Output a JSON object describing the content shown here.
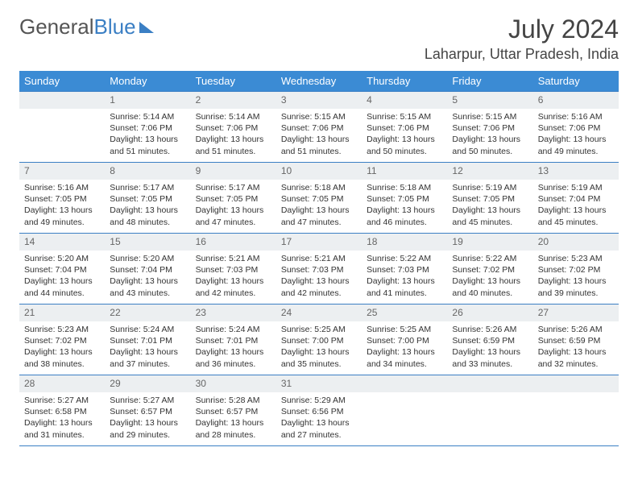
{
  "brand": {
    "part1": "General",
    "part2": "Blue"
  },
  "title": {
    "month": "July 2024",
    "location": "Laharpur, Uttar Pradesh, India"
  },
  "colors": {
    "header_bg": "#3b8bd4",
    "rule": "#3b7fc4",
    "daynum_bg": "#eceff1"
  },
  "weekdays": [
    "Sunday",
    "Monday",
    "Tuesday",
    "Wednesday",
    "Thursday",
    "Friday",
    "Saturday"
  ],
  "weeks": [
    [
      null,
      {
        "n": "1",
        "sr": "5:14 AM",
        "ss": "7:06 PM",
        "dl": "13 hours and 51 minutes."
      },
      {
        "n": "2",
        "sr": "5:14 AM",
        "ss": "7:06 PM",
        "dl": "13 hours and 51 minutes."
      },
      {
        "n": "3",
        "sr": "5:15 AM",
        "ss": "7:06 PM",
        "dl": "13 hours and 51 minutes."
      },
      {
        "n": "4",
        "sr": "5:15 AM",
        "ss": "7:06 PM",
        "dl": "13 hours and 50 minutes."
      },
      {
        "n": "5",
        "sr": "5:15 AM",
        "ss": "7:06 PM",
        "dl": "13 hours and 50 minutes."
      },
      {
        "n": "6",
        "sr": "5:16 AM",
        "ss": "7:06 PM",
        "dl": "13 hours and 49 minutes."
      }
    ],
    [
      {
        "n": "7",
        "sr": "5:16 AM",
        "ss": "7:05 PM",
        "dl": "13 hours and 49 minutes."
      },
      {
        "n": "8",
        "sr": "5:17 AM",
        "ss": "7:05 PM",
        "dl": "13 hours and 48 minutes."
      },
      {
        "n": "9",
        "sr": "5:17 AM",
        "ss": "7:05 PM",
        "dl": "13 hours and 47 minutes."
      },
      {
        "n": "10",
        "sr": "5:18 AM",
        "ss": "7:05 PM",
        "dl": "13 hours and 47 minutes."
      },
      {
        "n": "11",
        "sr": "5:18 AM",
        "ss": "7:05 PM",
        "dl": "13 hours and 46 minutes."
      },
      {
        "n": "12",
        "sr": "5:19 AM",
        "ss": "7:05 PM",
        "dl": "13 hours and 45 minutes."
      },
      {
        "n": "13",
        "sr": "5:19 AM",
        "ss": "7:04 PM",
        "dl": "13 hours and 45 minutes."
      }
    ],
    [
      {
        "n": "14",
        "sr": "5:20 AM",
        "ss": "7:04 PM",
        "dl": "13 hours and 44 minutes."
      },
      {
        "n": "15",
        "sr": "5:20 AM",
        "ss": "7:04 PM",
        "dl": "13 hours and 43 minutes."
      },
      {
        "n": "16",
        "sr": "5:21 AM",
        "ss": "7:03 PM",
        "dl": "13 hours and 42 minutes."
      },
      {
        "n": "17",
        "sr": "5:21 AM",
        "ss": "7:03 PM",
        "dl": "13 hours and 42 minutes."
      },
      {
        "n": "18",
        "sr": "5:22 AM",
        "ss": "7:03 PM",
        "dl": "13 hours and 41 minutes."
      },
      {
        "n": "19",
        "sr": "5:22 AM",
        "ss": "7:02 PM",
        "dl": "13 hours and 40 minutes."
      },
      {
        "n": "20",
        "sr": "5:23 AM",
        "ss": "7:02 PM",
        "dl": "13 hours and 39 minutes."
      }
    ],
    [
      {
        "n": "21",
        "sr": "5:23 AM",
        "ss": "7:02 PM",
        "dl": "13 hours and 38 minutes."
      },
      {
        "n": "22",
        "sr": "5:24 AM",
        "ss": "7:01 PM",
        "dl": "13 hours and 37 minutes."
      },
      {
        "n": "23",
        "sr": "5:24 AM",
        "ss": "7:01 PM",
        "dl": "13 hours and 36 minutes."
      },
      {
        "n": "24",
        "sr": "5:25 AM",
        "ss": "7:00 PM",
        "dl": "13 hours and 35 minutes."
      },
      {
        "n": "25",
        "sr": "5:25 AM",
        "ss": "7:00 PM",
        "dl": "13 hours and 34 minutes."
      },
      {
        "n": "26",
        "sr": "5:26 AM",
        "ss": "6:59 PM",
        "dl": "13 hours and 33 minutes."
      },
      {
        "n": "27",
        "sr": "5:26 AM",
        "ss": "6:59 PM",
        "dl": "13 hours and 32 minutes."
      }
    ],
    [
      {
        "n": "28",
        "sr": "5:27 AM",
        "ss": "6:58 PM",
        "dl": "13 hours and 31 minutes."
      },
      {
        "n": "29",
        "sr": "5:27 AM",
        "ss": "6:57 PM",
        "dl": "13 hours and 29 minutes."
      },
      {
        "n": "30",
        "sr": "5:28 AM",
        "ss": "6:57 PM",
        "dl": "13 hours and 28 minutes."
      },
      {
        "n": "31",
        "sr": "5:29 AM",
        "ss": "6:56 PM",
        "dl": "13 hours and 27 minutes."
      },
      null,
      null,
      null
    ]
  ],
  "labels": {
    "sunrise": "Sunrise:",
    "sunset": "Sunset:",
    "daylight": "Daylight:"
  }
}
